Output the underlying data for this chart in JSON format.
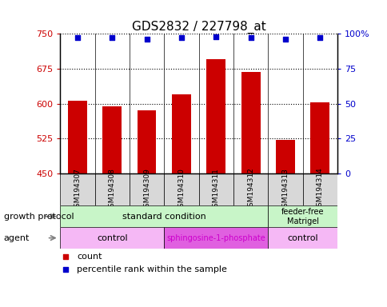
{
  "title": "GDS2832 / 227798_at",
  "samples": [
    "GSM194307",
    "GSM194308",
    "GSM194309",
    "GSM194310",
    "GSM194311",
    "GSM194312",
    "GSM194313",
    "GSM194314"
  ],
  "counts": [
    607,
    595,
    585,
    620,
    695,
    668,
    522,
    603
  ],
  "percentile_ranks": [
    97,
    97,
    96,
    97,
    98,
    97,
    96,
    97
  ],
  "ylim_left": [
    450,
    750
  ],
  "ylim_right": [
    0,
    100
  ],
  "yticks_left": [
    450,
    525,
    600,
    675,
    750
  ],
  "yticks_right": [
    0,
    25,
    50,
    75,
    100
  ],
  "yticklabels_right": [
    "0",
    "25",
    "50",
    "75",
    "100%"
  ],
  "bar_color": "#cc0000",
  "dot_color": "#0000cc",
  "bar_width": 0.55,
  "gp_color_standard": "#c8f5c8",
  "gp_color_feeder": "#c8f5c8",
  "agent_color_control": "#f5b8f5",
  "agent_color_sphingo": "#e060e0",
  "agent_text_sphingo": "#cc00cc",
  "sample_box_color": "#d8d8d8",
  "tick_color_left": "#cc0000",
  "tick_color_right": "#0000cc",
  "legend_count_color": "#cc0000",
  "legend_pct_color": "#0000cc",
  "grid_linestyle": "dotted",
  "grid_linewidth": 0.8,
  "title_fontsize": 11,
  "bar_fontsize": 7,
  "annotation_fontsize": 8,
  "label_fontsize": 8,
  "legend_fontsize": 8
}
